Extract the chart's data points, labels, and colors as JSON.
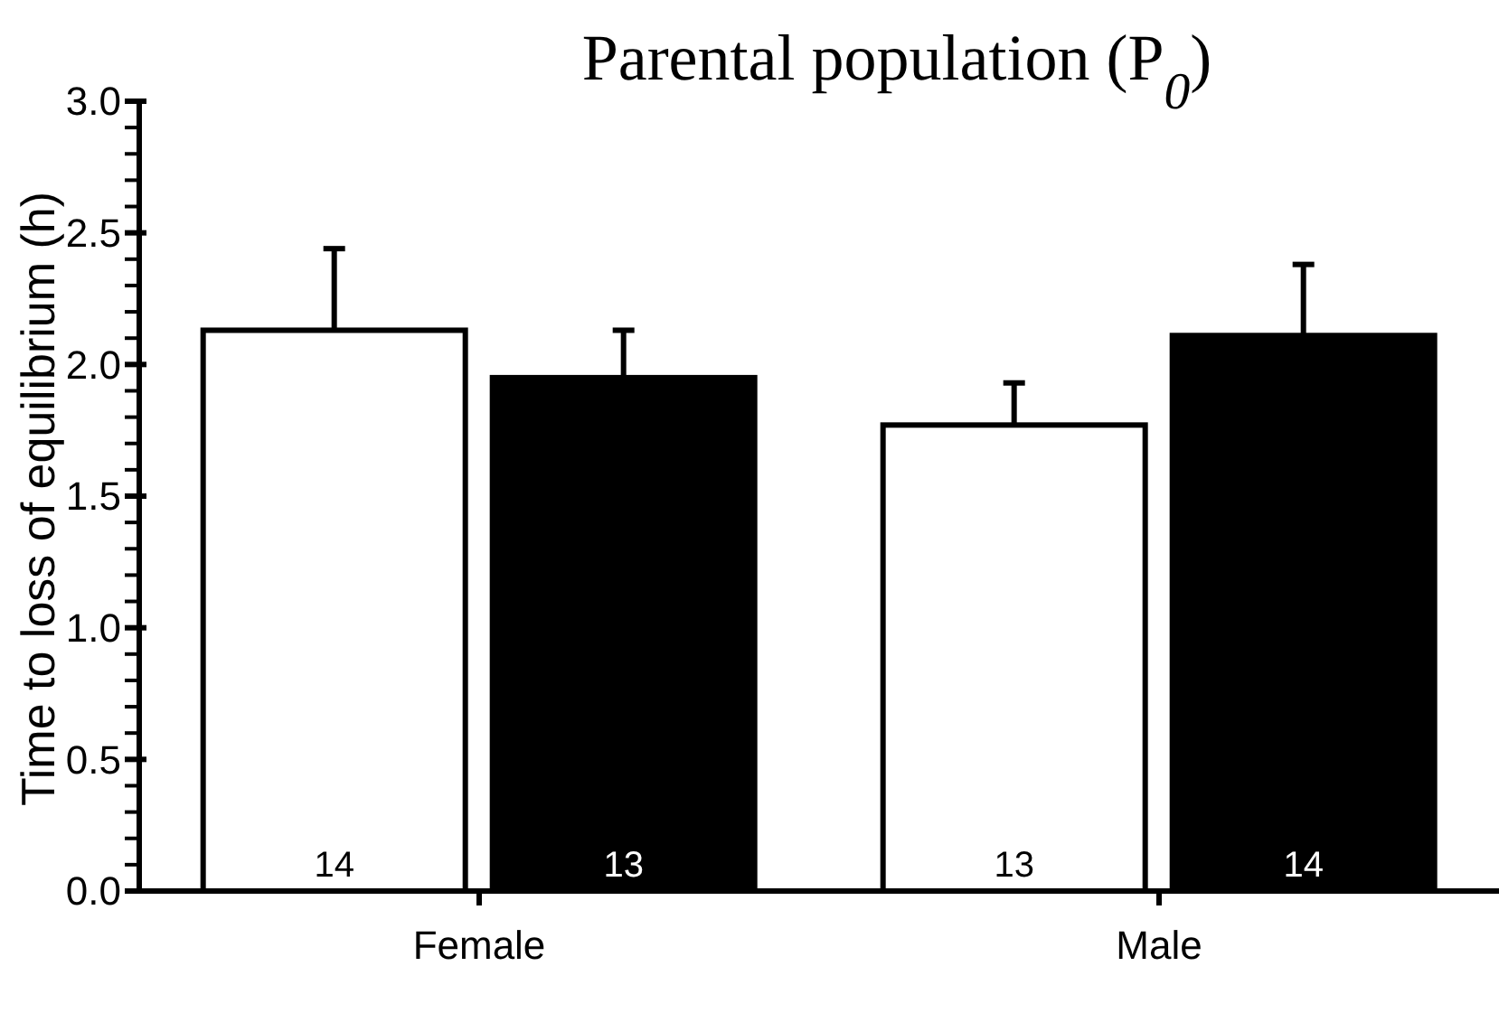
{
  "chart_data": {
    "type": "bar",
    "title": "Parental population (P$_{0}$)",
    "ylabel": "Time to loss of equilibrium (h)",
    "categories": [
      "Female",
      "Male"
    ],
    "series": [
      {
        "color": "#ffffff",
        "values": [
          2.13,
          1.77
        ],
        "errors": [
          0.31,
          0.16
        ]
      },
      {
        "color": "#000000",
        "values": [
          1.95,
          2.11
        ],
        "errors": [
          0.18,
          0.27
        ]
      }
    ],
    "annotations": [
      "14",
      "13",
      "13",
      "14"
    ],
    "ylim": [
      0,
      3
    ],
    "yticks": [
      {
        "value": 0,
        "label": "0.0"
      },
      {
        "value": 0.1,
        "label": null
      },
      {
        "value": 0.2,
        "label": null
      },
      {
        "value": 0.3,
        "label": null
      },
      {
        "value": 0.4,
        "label": null
      },
      {
        "value": 0.5,
        "label": "0.5"
      },
      {
        "value": 0.6,
        "label": null
      },
      {
        "value": 0.7,
        "label": null
      },
      {
        "value": 0.8,
        "label": null
      },
      {
        "value": 0.9,
        "label": null
      },
      {
        "value": 1,
        "label": "1.0"
      },
      {
        "value": 1.1,
        "label": null
      },
      {
        "value": 1.2,
        "label": null
      },
      {
        "value": 1.3,
        "label": null
      },
      {
        "value": 1.4,
        "label": null
      },
      {
        "value": 1.5,
        "label": "1.5"
      },
      {
        "value": 1.6,
        "label": null
      },
      {
        "value": 1.7,
        "label": null
      },
      {
        "value": 1.8,
        "label": null
      },
      {
        "value": 1.9,
        "label": null
      },
      {
        "value": 2,
        "label": "2.0"
      },
      {
        "value": 2.1,
        "label": null
      },
      {
        "value": 2.2,
        "label": null
      },
      {
        "value": 2.3,
        "label": null
      },
      {
        "value": 2.4,
        "label": null
      },
      {
        "value": 2.5,
        "label": "2.5"
      },
      {
        "value": 2.6,
        "label": null
      },
      {
        "value": 2.7,
        "label": null
      },
      {
        "value": 2.8,
        "label": null
      },
      {
        "value": 2.9,
        "label": null
      },
      {
        "value": 3,
        "label": "3.0"
      }
    ],
    "grid": false,
    "legend": false
  }
}
